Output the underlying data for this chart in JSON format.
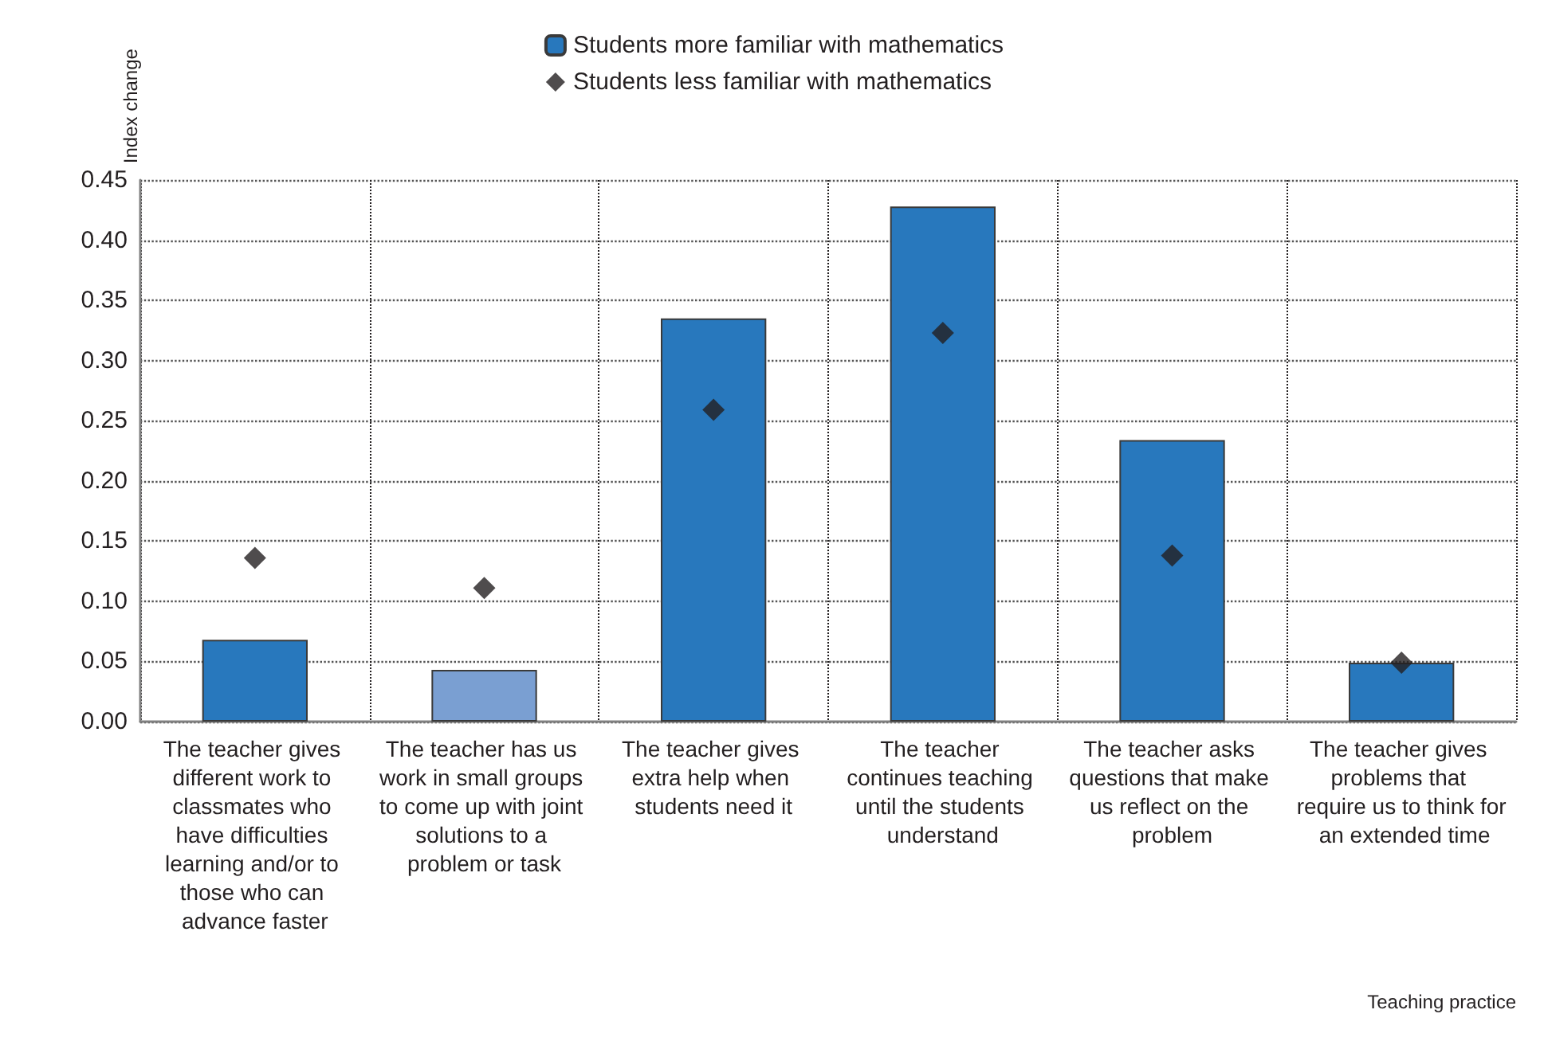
{
  "chart_data": {
    "type": "bar",
    "ylabel": "Index change",
    "xlabel": "Teaching practice",
    "categories": [
      "The teacher gives different work to classmates who have difficulties learning and/or to those who can advance faster",
      "The teacher has us work in small groups to come up with joint solutions to a problem or task",
      "The teacher gives extra help when students need it",
      "The teacher continues teaching until the students understand",
      "The teacher asks questions that make us reflect on the problem",
      "The teacher gives problems that require us to think for an extended time"
    ],
    "series": [
      {
        "name": "Students more familiar with mathematics",
        "color": "#2878bd",
        "colors": [
          "#2878bd",
          "#7a9fd2",
          "#2878bd",
          "#2878bd",
          "#2878bd",
          "#2878bd"
        ],
        "values": [
          0.068,
          0.043,
          0.335,
          0.428,
          0.234,
          0.049
        ]
      },
      {
        "name": "Students less familiar with mathematics",
        "type": "scatter",
        "color": "#231f20",
        "values": [
          0.136,
          0.111,
          0.259,
          0.323,
          0.138,
          0.049
        ]
      }
    ],
    "marker": "diamond",
    "ylim": [
      0,
      0.45
    ],
    "yticks": [
      {
        "value": 0,
        "label": "0.00"
      },
      {
        "value": 0.05,
        "label": "0.05"
      },
      {
        "value": 0.1,
        "label": "0.10"
      },
      {
        "value": 0.15,
        "label": "0.15"
      },
      {
        "value": 0.2,
        "label": "0.20"
      },
      {
        "value": 0.25,
        "label": "0.25"
      },
      {
        "value": 0.3,
        "label": "0.30"
      },
      {
        "value": 0.35,
        "label": "0.35"
      },
      {
        "value": 0.4,
        "label": "0.40"
      },
      {
        "value": 0.45,
        "label": "0.45"
      }
    ],
    "grid": true,
    "legend": "top"
  }
}
